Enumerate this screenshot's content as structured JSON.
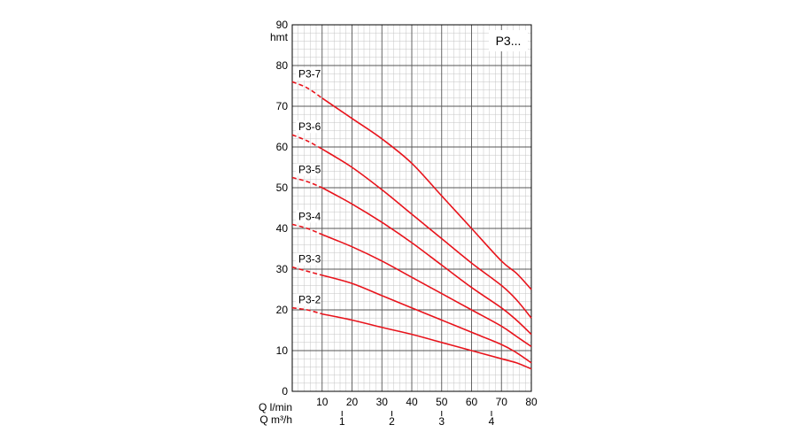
{
  "chart_data": {
    "type": "line",
    "title": "P3...",
    "ylabel": "hmt",
    "xlabel": "Q l/min",
    "x2label": "Q m³/h",
    "xlim": [
      0,
      80
    ],
    "ylim": [
      0,
      90
    ],
    "y_ticks": [
      "0",
      "10",
      "20",
      "30",
      "40",
      "50",
      "60",
      "70",
      "80",
      "90"
    ],
    "x_ticks": [
      "10",
      "20",
      "30",
      "40",
      "50",
      "60",
      "70",
      "80"
    ],
    "x2_ticks": [
      {
        "label": "1",
        "value": 1
      },
      {
        "label": "2",
        "value": 2
      },
      {
        "label": "3",
        "value": 3
      },
      {
        "label": "4",
        "value": 4
      }
    ],
    "grid": true,
    "line_color": "#e8141c",
    "dashed_until_x": 10,
    "series": [
      {
        "name": "P3-7",
        "x": [
          0,
          5,
          10,
          20,
          30,
          40,
          50,
          60,
          70,
          75,
          80
        ],
        "y": [
          76,
          74.5,
          72,
          67,
          62,
          56,
          48,
          40,
          32,
          29,
          25
        ]
      },
      {
        "name": "P3-6",
        "x": [
          0,
          5,
          10,
          20,
          30,
          40,
          50,
          60,
          70,
          75,
          80
        ],
        "y": [
          63,
          61.5,
          59.5,
          55,
          49.5,
          43.5,
          37.5,
          31.5,
          26,
          22.5,
          18
        ]
      },
      {
        "name": "P3-5",
        "x": [
          0,
          5,
          10,
          20,
          30,
          40,
          50,
          60,
          70,
          75,
          80
        ],
        "y": [
          52.5,
          51.5,
          50,
          46,
          41.5,
          36.5,
          31,
          25.5,
          20.5,
          17.5,
          14
        ]
      },
      {
        "name": "P3-4",
        "x": [
          0,
          5,
          10,
          20,
          30,
          40,
          50,
          60,
          70,
          75,
          80
        ],
        "y": [
          41,
          40,
          38.5,
          35.5,
          32,
          28,
          24,
          20,
          16,
          13.5,
          11
        ]
      },
      {
        "name": "P3-3",
        "x": [
          0,
          5,
          10,
          20,
          30,
          40,
          50,
          60,
          70,
          75,
          80
        ],
        "y": [
          30.5,
          29.5,
          28.5,
          26.5,
          23.5,
          20.5,
          17.5,
          14.5,
          11.5,
          9.5,
          7
        ]
      },
      {
        "name": "P3-2",
        "x": [
          0,
          5,
          10,
          20,
          30,
          40,
          50,
          60,
          70,
          75,
          80
        ],
        "y": [
          20.5,
          20,
          19,
          17.5,
          15.7,
          14,
          12,
          10,
          8,
          7,
          5.5
        ]
      }
    ]
  }
}
